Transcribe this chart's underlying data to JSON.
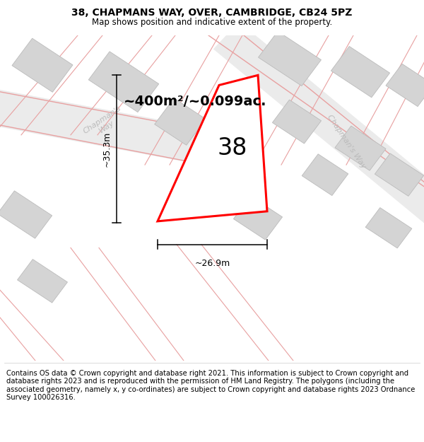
{
  "title": "38, CHAPMANS WAY, OVER, CAMBRIDGE, CB24 5PZ",
  "subtitle": "Map shows position and indicative extent of the property.",
  "footer": "Contains OS data © Crown copyright and database right 2021. This information is subject to Crown copyright and database rights 2023 and is reproduced with the permission of HM Land Registry. The polygons (including the associated geometry, namely x, y co-ordinates) are subject to Crown copyright and database rights 2023 Ordnance Survey 100026316.",
  "area_label": "~400m²/~0.099ac.",
  "number_label": "38",
  "width_label": "~26.9m",
  "height_label": "~35.3m",
  "plot_color": "#ff0000",
  "building_color": "#d4d4d4",
  "building_edge": "#bbbbbb",
  "road_line_color": "#e8a0a0",
  "road_fill_color": "#ececec",
  "street_color": "#bbbbbb",
  "map_bg": "#ffffff",
  "title_fontsize": 10,
  "subtitle_fontsize": 8.5,
  "footer_fontsize": 7.2,
  "area_fontsize": 14,
  "number_fontsize": 24,
  "dim_fontsize": 9
}
